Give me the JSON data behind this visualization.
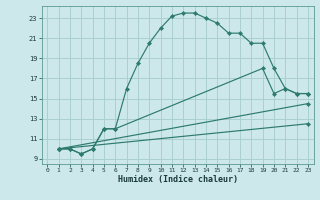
{
  "xlabel": "Humidex (Indice chaleur)",
  "bg_color": "#cde8ea",
  "grid_color": "#aacfd2",
  "line_color": "#2d7a6e",
  "xlim": [
    -0.5,
    23.5
  ],
  "ylim": [
    8.5,
    24.2
  ],
  "yticks": [
    9,
    11,
    13,
    15,
    17,
    19,
    21,
    23
  ],
  "xticks": [
    0,
    1,
    2,
    3,
    4,
    5,
    6,
    7,
    8,
    9,
    10,
    11,
    12,
    13,
    14,
    15,
    16,
    17,
    18,
    19,
    20,
    21,
    22,
    23
  ],
  "series": [
    {
      "x": [
        1,
        2,
        3,
        4,
        5,
        6,
        7,
        8,
        9,
        10,
        11,
        12,
        13,
        14,
        15,
        16,
        17,
        18,
        19,
        20,
        21,
        22,
        23
      ],
      "y": [
        10,
        10,
        9.5,
        10,
        12,
        12,
        16,
        18.5,
        20.5,
        22,
        23.2,
        23.5,
        23.5,
        23,
        22.5,
        21.5,
        21.5,
        20.5,
        20.5,
        18,
        16,
        15.5,
        15.5
      ]
    },
    {
      "x": [
        1,
        2,
        3,
        4,
        5,
        6,
        19,
        20,
        21,
        22,
        23
      ],
      "y": [
        10,
        10,
        9.5,
        10,
        12,
        12,
        18,
        15.5,
        16,
        15.5,
        15.5
      ]
    },
    {
      "x": [
        1,
        23
      ],
      "y": [
        10,
        14.5
      ]
    },
    {
      "x": [
        1,
        23
      ],
      "y": [
        10,
        12.5
      ]
    }
  ]
}
